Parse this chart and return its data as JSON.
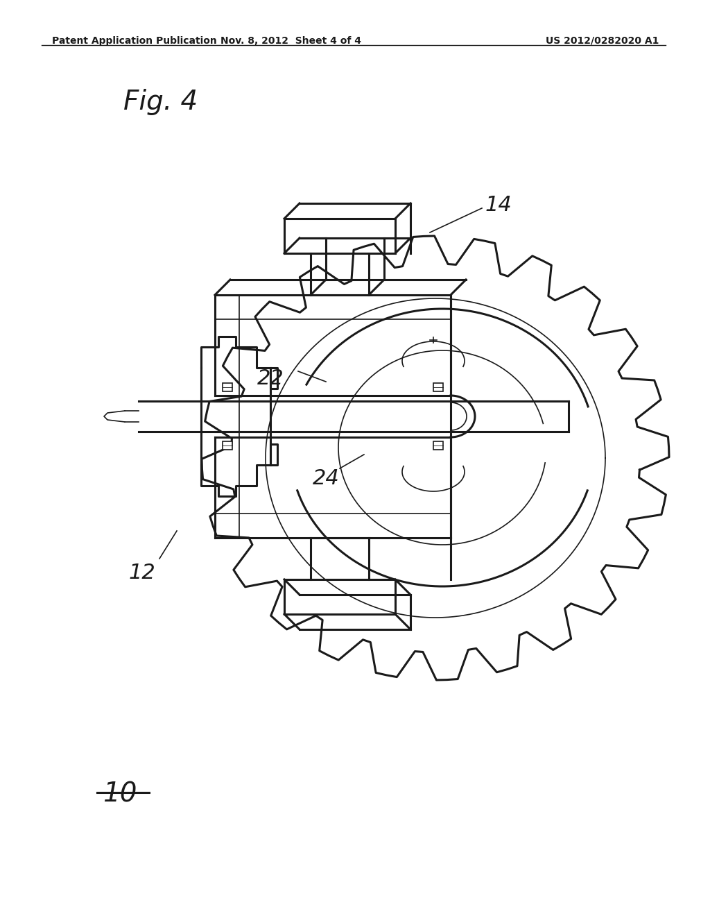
{
  "background_color": "#ffffff",
  "header_left": "Patent Application Publication",
  "header_mid": "Nov. 8, 2012  Sheet 4 of 4",
  "header_right": "US 2012/0282020 A1",
  "fig_label": "Fig. 4",
  "line_color": "#1a1a1a",
  "header_font_size": 11,
  "lw_main": 2.2,
  "lw_thin": 1.2,
  "lw_thick": 3.0
}
